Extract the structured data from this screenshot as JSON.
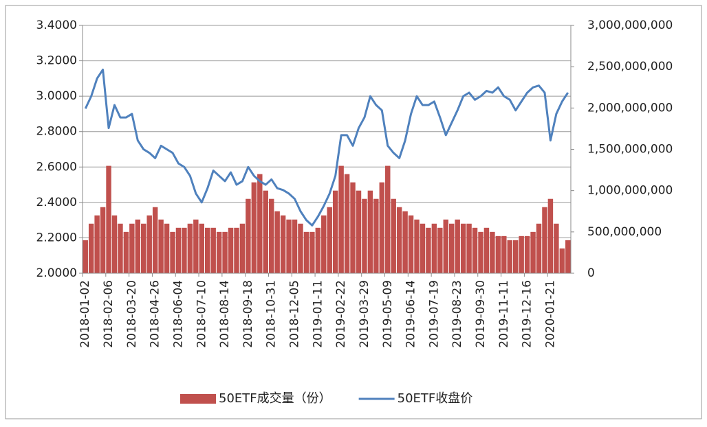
{
  "chart_data": {
    "type": "bar-line",
    "categories": [
      "2018-01-02",
      null,
      null,
      null,
      "2018-02-06",
      null,
      null,
      null,
      "2018-03-20",
      null,
      null,
      null,
      "2018-04-26",
      null,
      null,
      null,
      "2018-06-04",
      null,
      null,
      null,
      "2018-07-10",
      null,
      null,
      null,
      "2018-08-14",
      null,
      null,
      null,
      "2018-09-18",
      null,
      null,
      null,
      "2018-10-31",
      null,
      null,
      null,
      "2018-12-05",
      null,
      null,
      null,
      "2019-01-11",
      null,
      null,
      null,
      "2019-02-22",
      null,
      null,
      null,
      "2019-03-29",
      null,
      null,
      null,
      "2019-05-09",
      null,
      null,
      null,
      "2019-06-14",
      null,
      null,
      null,
      "2019-07-19",
      null,
      null,
      null,
      "2019-08-23",
      null,
      null,
      null,
      "2019-09-30",
      null,
      null,
      null,
      "2019-11-11",
      null,
      null,
      null,
      "2019-12-16",
      null,
      null,
      null,
      "2020-01-21",
      null,
      null,
      null
    ],
    "series": [
      {
        "name": "50ETF成交量（份）",
        "color": "#c0504d",
        "axis": "y2",
        "kind": "bar",
        "values": [
          400000000,
          600000000,
          700000000,
          800000000,
          1300000000,
          700000000,
          600000000,
          500000000,
          600000000,
          650000000,
          600000000,
          700000000,
          800000000,
          650000000,
          600000000,
          500000000,
          550000000,
          550000000,
          600000000,
          650000000,
          600000000,
          550000000,
          550000000,
          500000000,
          500000000,
          550000000,
          550000000,
          600000000,
          900000000,
          1100000000,
          1200000000,
          1000000000,
          900000000,
          750000000,
          700000000,
          650000000,
          650000000,
          600000000,
          500000000,
          500000000,
          550000000,
          700000000,
          800000000,
          1000000000,
          1300000000,
          1200000000,
          1100000000,
          1000000000,
          900000000,
          1000000000,
          900000000,
          1100000000,
          1300000000,
          900000000,
          800000000,
          750000000,
          700000000,
          650000000,
          600000000,
          550000000,
          600000000,
          550000000,
          650000000,
          600000000,
          650000000,
          600000000,
          600000000,
          550000000,
          500000000,
          550000000,
          500000000,
          450000000,
          450000000,
          400000000,
          400000000,
          450000000,
          450000000,
          500000000,
          600000000,
          800000000,
          900000000,
          600000000,
          300000000,
          400000000
        ]
      },
      {
        "name": "50ETF收盘价",
        "color": "#4f81bd",
        "axis": "y",
        "kind": "line",
        "values": [
          2.93,
          3.0,
          3.1,
          3.15,
          2.82,
          2.95,
          2.88,
          2.88,
          2.9,
          2.75,
          2.7,
          2.68,
          2.65,
          2.72,
          2.7,
          2.68,
          2.62,
          2.6,
          2.55,
          2.45,
          2.4,
          2.48,
          2.58,
          2.55,
          2.52,
          2.57,
          2.5,
          2.52,
          2.6,
          2.55,
          2.52,
          2.5,
          2.53,
          2.48,
          2.47,
          2.45,
          2.42,
          2.35,
          2.3,
          2.27,
          2.32,
          2.38,
          2.45,
          2.55,
          2.78,
          2.78,
          2.72,
          2.82,
          2.88,
          3.0,
          2.95,
          2.92,
          2.72,
          2.68,
          2.65,
          2.75,
          2.9,
          3.0,
          2.95,
          2.95,
          2.97,
          2.88,
          2.78,
          2.85,
          2.92,
          3.0,
          3.02,
          2.98,
          3.0,
          3.03,
          3.02,
          3.05,
          3.0,
          2.98,
          2.92,
          2.97,
          3.02,
          3.05,
          3.06,
          3.02,
          2.75,
          2.9,
          2.97,
          3.02
        ]
      }
    ],
    "ylim": [
      2.0,
      3.4
    ],
    "yticks": [
      {
        "value": 2.0,
        "label": "2.0000"
      },
      {
        "value": 2.2,
        "label": "2.2000"
      },
      {
        "value": 2.4,
        "label": "2.4000"
      },
      {
        "value": 2.6,
        "label": "2.6000"
      },
      {
        "value": 2.8,
        "label": "2.8000"
      },
      {
        "value": 3.0,
        "label": "3.0000"
      },
      {
        "value": 3.2,
        "label": "3.2000"
      },
      {
        "value": 3.4,
        "label": "3.4000"
      }
    ],
    "y2lim": [
      0,
      3000000000
    ],
    "y2ticks": [
      0,
      {
        "value": 500000000,
        "label": "500,000,000"
      },
      {
        "value": 1000000000,
        "label": "1,000,000,000"
      },
      {
        "value": 1500000000,
        "label": "1,500,000,000"
      },
      {
        "value": 2000000000,
        "label": "2,000,000,000"
      },
      {
        "value": 2500000000,
        "label": "2,500,000,000"
      },
      {
        "value": 3000000000,
        "label": "3,000,000,000"
      }
    ],
    "grid": true,
    "legend": "bottom"
  }
}
